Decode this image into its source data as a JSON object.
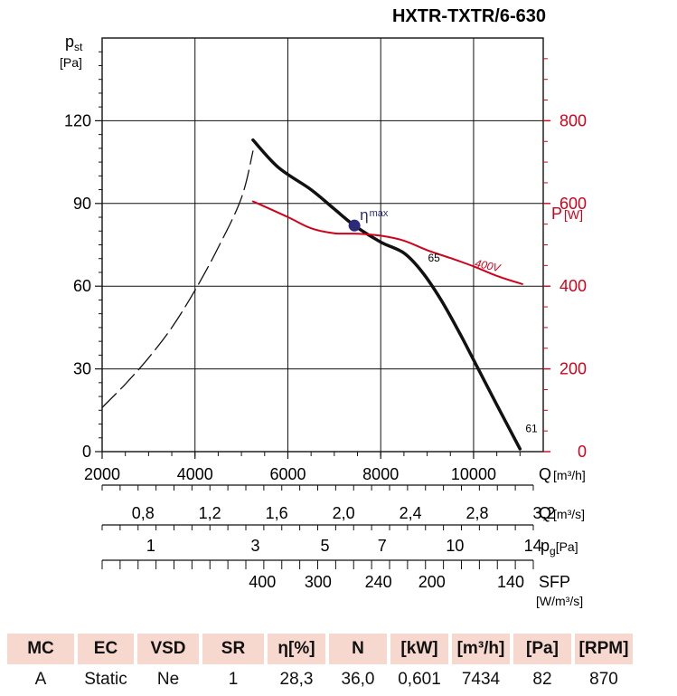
{
  "header": {
    "title": "HXTR-TXTR/6-630"
  },
  "chart_data": {
    "type": "line",
    "title": "HXTR-TXTR/6-630",
    "x_axis": {
      "label_main": "Q",
      "label_unit": "[m³/h]",
      "range": [
        2000,
        11500
      ],
      "ticks": [
        "2000",
        "4000",
        "6000",
        "8000",
        "10000"
      ]
    },
    "y_axis_left": {
      "label_main": "p",
      "label_sub": "st",
      "label_unit": "[Pa]",
      "range": [
        0,
        150
      ],
      "ticks": [
        "0",
        "30",
        "60",
        "90",
        "120"
      ]
    },
    "y_axis_right": {
      "label_main": "P",
      "label_unit": "[W]",
      "range": [
        0,
        1000
      ],
      "ticks": [
        "0",
        "200",
        "400",
        "600",
        "800"
      ],
      "color": "#d0021b"
    },
    "series": [
      {
        "name": "static pressure",
        "axis": "left",
        "style": "solid",
        "color": "#111111",
        "points": [
          [
            5250,
            113
          ],
          [
            5800,
            103
          ],
          [
            6500,
            95
          ],
          [
            7000,
            88
          ],
          [
            7434,
            82
          ],
          [
            8000,
            76
          ],
          [
            8500,
            72
          ],
          [
            8900,
            65
          ],
          [
            9300,
            55
          ],
          [
            9700,
            43
          ],
          [
            10100,
            30
          ],
          [
            10500,
            17
          ],
          [
            11000,
            1
          ]
        ]
      },
      {
        "name": "system curve",
        "axis": "left",
        "style": "dashed",
        "color": "#111111",
        "points": [
          [
            2000,
            16
          ],
          [
            2500,
            24.5
          ],
          [
            3000,
            34
          ],
          [
            3500,
            45
          ],
          [
            4000,
            58.5
          ],
          [
            4500,
            74
          ],
          [
            5000,
            92
          ],
          [
            5250,
            109
          ]
        ]
      },
      {
        "name": "power 400V",
        "axis": "right",
        "style": "solid",
        "color": "#d0021b",
        "points": [
          [
            5250,
            605
          ],
          [
            6000,
            567
          ],
          [
            6500,
            540
          ],
          [
            7000,
            528
          ],
          [
            7500,
            527
          ],
          [
            8000,
            522
          ],
          [
            8500,
            510
          ],
          [
            9000,
            487
          ],
          [
            9500,
            468
          ],
          [
            10000,
            448
          ],
          [
            10500,
            425
          ],
          [
            11050,
            405
          ]
        ]
      }
    ],
    "annotations": [
      {
        "text_main": "η",
        "text_sub": "max",
        "x": 7434,
        "y": 82,
        "axis": "left",
        "color": "#2b2b7a"
      },
      {
        "text": "65",
        "x": 8900,
        "y": 69,
        "axis": "left"
      },
      {
        "text": "61",
        "x": 11000,
        "y": 7,
        "axis": "left"
      },
      {
        "text": "400V",
        "x": 10550,
        "y": 432,
        "axis": "right",
        "color": "#d0021b"
      }
    ],
    "secondary_scales": [
      {
        "label_main": "Q",
        "label_unit": "[m³/s]",
        "ticks": [
          {
            "label": "0,8",
            "q": 2880
          },
          {
            "label": "1,2",
            "q": 4320
          },
          {
            "label": "1,6",
            "q": 5760
          },
          {
            "label": "2,0",
            "q": 7200
          },
          {
            "label": "2,4",
            "q": 8640
          },
          {
            "label": "2,8",
            "q": 10080
          },
          {
            "label": "3,2",
            "q": 11520
          }
        ]
      },
      {
        "label_main": "p",
        "label_sub": "g",
        "label_unit": "[Pa]",
        "ticks": [
          {
            "label": "1",
            "q": 3050
          },
          {
            "label": "3",
            "q": 5300
          },
          {
            "label": "5",
            "q": 6800
          },
          {
            "label": "7",
            "q": 8030
          },
          {
            "label": "10",
            "q": 9600
          },
          {
            "label": "14",
            "q": 11280
          }
        ]
      },
      {
        "label_main": "SFP",
        "label_unit": "[W/m³/s]",
        "ticks": [
          {
            "label": "400",
            "q": 5450
          },
          {
            "label": "300",
            "q": 6650
          },
          {
            "label": "240",
            "q": 7950
          },
          {
            "label": "200",
            "q": 9100
          },
          {
            "label": "140",
            "q": 10800
          }
        ]
      }
    ]
  },
  "specs_table": {
    "headers": [
      "MC",
      "EC",
      "VSD",
      "SR",
      "η[%]",
      "N",
      "[kW]",
      "[m³/h]",
      "[Pa]",
      "[RPM]"
    ],
    "values": [
      "A",
      "Static",
      "Ne",
      "1",
      "28,3",
      "36,0",
      "0,601",
      "7434",
      "82",
      "870"
    ]
  }
}
